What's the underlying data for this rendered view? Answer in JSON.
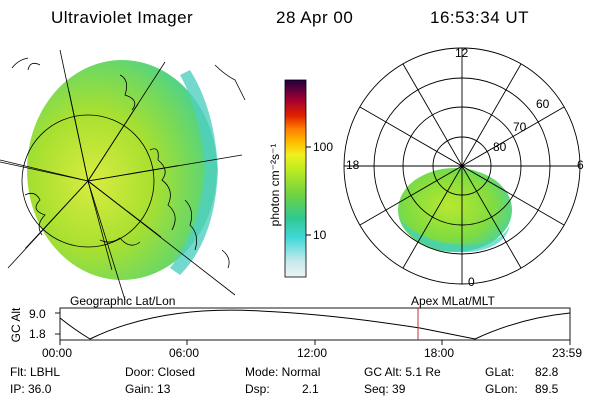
{
  "header": {
    "instrument": "Ultraviolet Imager",
    "date": "28 Apr 00",
    "time": "16:53:34 UT"
  },
  "left_panel": {
    "label": "Geographic Lat/Lon"
  },
  "colorbar": {
    "unit_label": "photon cm⁻²s⁻¹",
    "tick_labels": [
      "100",
      "10"
    ],
    "colors": [
      "#e8f4f4",
      "#c8e8ec",
      "#40d8d8",
      "#20c8a0",
      "#60d060",
      "#a0e020",
      "#d8f020",
      "#ffe020",
      "#ffb000",
      "#ff7000",
      "#e02000",
      "#a00020",
      "#600050",
      "#200040"
    ]
  },
  "right_panel": {
    "label": "Apex MLat/MLT",
    "mlt_labels": {
      "top": "12",
      "left": "18",
      "right": "6",
      "bottom": "0"
    },
    "lat_labels": [
      "60",
      "70",
      "80"
    ]
  },
  "altitude_plot": {
    "ylabel": "GC Alt",
    "ytick_top": "9.0",
    "ytick_bottom": "1.8",
    "x_ticks": [
      "00:00",
      "06:00",
      "12:00",
      "18:00",
      "23:59"
    ]
  },
  "status": {
    "filter": "Flt: LBHL",
    "ip": "IP: 36.0",
    "door": "Door: Closed",
    "gain": "Gain: 13",
    "mode": "Mode: Normal",
    "dsp_label": "Dsp:",
    "dsp_value": "2.1",
    "gc_alt": "GC Alt: 5.1 Re",
    "seq": "Seq: 39",
    "glat_label": "GLat:",
    "glat_value": "82.8",
    "glon_label": "GLon:",
    "glon_value": "89.5"
  }
}
